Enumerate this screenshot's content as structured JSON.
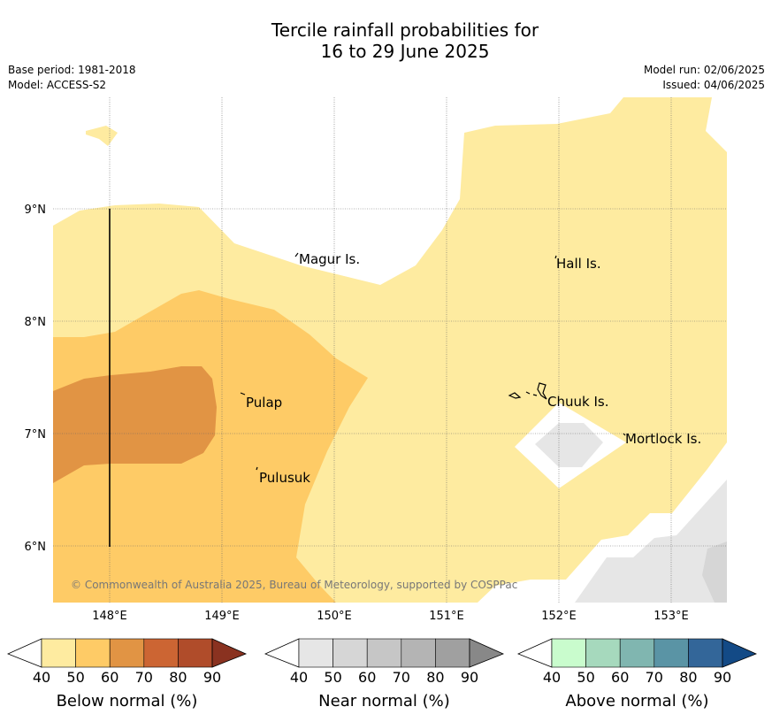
{
  "title_line1": "Tercile rainfall probabilities for",
  "title_line2": "16 to 29 June 2025",
  "base_period": "Base period: 1981-2018",
  "model": "Model: ACCESS-S2",
  "model_run": "Model run: 02/06/2025",
  "issued": "Issued: 04/06/2025",
  "copyright": "© Commonwealth of Australia 2025, Bureau of Meteorology, supported by COSPPac",
  "lon_ticks": [
    "148°E",
    "149°E",
    "150°E",
    "151°E",
    "152°E",
    "153°E"
  ],
  "lat_ticks": [
    "9°N",
    "8°N",
    "7°N",
    "6°N"
  ],
  "places": {
    "magur": "Magur Is.",
    "hall": "Hall Is.",
    "pulap": "Pulap",
    "chuuk": "Chuuk Is.",
    "mortlock": "Mortlock Is.",
    "pulusuk": "Pulusuk"
  },
  "legends": [
    {
      "name": "below",
      "label": "Below normal (%)",
      "ticks": [
        "40",
        "50",
        "60",
        "70",
        "80",
        "90"
      ],
      "colors": [
        "#fff",
        "#feeba0",
        "#fecb66",
        "#e19444",
        "#cc6533",
        "#b04c2a",
        "#8a3220"
      ]
    },
    {
      "name": "near",
      "label": "Near normal (%)",
      "ticks": [
        "40",
        "50",
        "60",
        "70",
        "80",
        "90"
      ],
      "colors": [
        "#fff",
        "#e6e6e6",
        "#d6d6d6",
        "#c6c6c6",
        "#b4b4b4",
        "#a0a0a0",
        "#888888"
      ]
    },
    {
      "name": "above",
      "label": "Above normal (%)",
      "ticks": [
        "40",
        "50",
        "60",
        "70",
        "80",
        "90"
      ],
      "colors": [
        "#fff",
        "#c9fccd",
        "#a6d9bd",
        "#80b6b0",
        "#5a94a5",
        "#336699",
        "#134a86"
      ]
    }
  ]
}
